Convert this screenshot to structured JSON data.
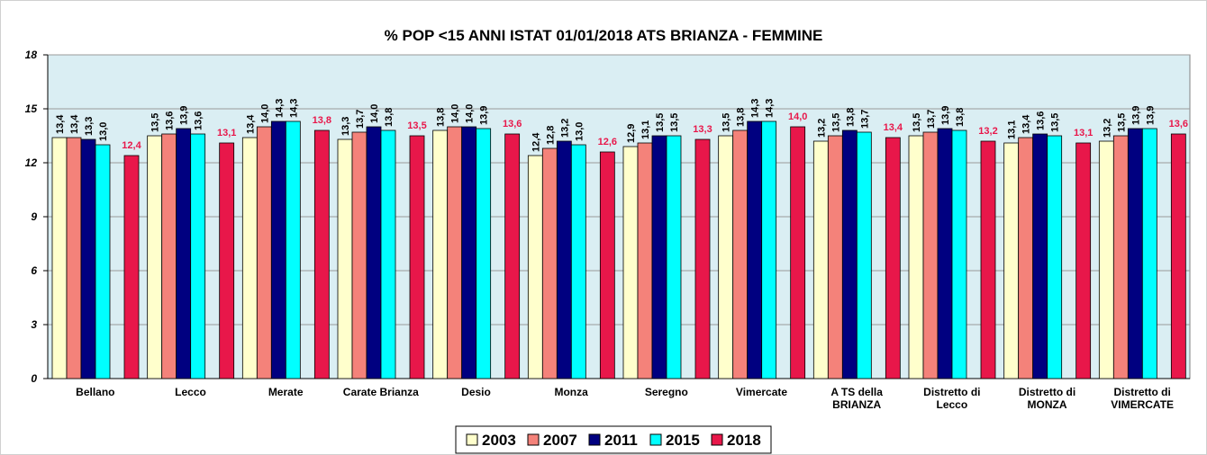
{
  "chart_data": {
    "type": "bar",
    "title": "% POP <15 ANNI ISTAT 01/01/2018  ATS BRIANZA - FEMMINE",
    "categories": [
      "Bellano",
      "Lecco",
      "Merate",
      "Carate Brianza",
      "Desio",
      "Monza",
      "Seregno",
      "Vimercate",
      "A TS della\nBRIANZA",
      "Distretto di\nLecco",
      "Distretto di\nMONZA",
      "Distretto di\nVIMERCATE"
    ],
    "series": [
      {
        "name": "2003",
        "color": "#ffffcc",
        "values": [
          13.4,
          13.5,
          13.4,
          13.3,
          13.8,
          12.4,
          12.9,
          13.5,
          13.2,
          13.5,
          13.1,
          13.2
        ],
        "value_labels": [
          "13,4",
          "13,5",
          "13,4",
          "13,3",
          "13,8",
          "12,4",
          "12,9",
          "13,5",
          "13,2",
          "13,5",
          "13,1",
          "13,2"
        ]
      },
      {
        "name": "2007",
        "color": "#f4827a",
        "values": [
          13.4,
          13.6,
          14.0,
          13.7,
          14.0,
          12.8,
          13.1,
          13.8,
          13.5,
          13.7,
          13.4,
          13.5
        ],
        "value_labels": [
          "13,4",
          "13,6",
          "14,0",
          "13,7",
          "14,0",
          "12,8",
          "13,1",
          "13,8",
          "13,5",
          "13,7",
          "13,4",
          "13,5"
        ]
      },
      {
        "name": "2011",
        "color": "#000080",
        "values": [
          13.3,
          13.9,
          14.3,
          14.0,
          14.0,
          13.2,
          13.5,
          14.3,
          13.8,
          13.9,
          13.6,
          13.9
        ],
        "value_labels": [
          "13,3",
          "13,9",
          "14,3",
          "14,0",
          "14,0",
          "13,2",
          "13,5",
          "14,3",
          "13,8",
          "13,9",
          "13,6",
          "13,9"
        ]
      },
      {
        "name": "2015",
        "color": "#00ffff",
        "values": [
          13.0,
          13.6,
          14.3,
          13.8,
          13.9,
          13.0,
          13.5,
          14.3,
          13.7,
          13.8,
          13.5,
          13.9
        ],
        "value_labels": [
          "13,0",
          "13,6",
          "14,3",
          "13,8",
          "13,9",
          "13,0",
          "13,5",
          "14,3",
          "13,7",
          "13,8",
          "13,5",
          "13,9"
        ]
      },
      {
        "name": "2018",
        "color": "#e8174a",
        "values": [
          12.4,
          13.1,
          13.8,
          13.5,
          13.6,
          12.6,
          13.3,
          14.0,
          13.4,
          13.2,
          13.1,
          13.6
        ],
        "value_labels": [
          "12,4",
          "13,1",
          "13,8",
          "13,5",
          "13,6",
          "12,6",
          "13,3",
          "14,0",
          "13,4",
          "13,2",
          "13,1",
          "13,6"
        ]
      }
    ],
    "ylim": [
      0,
      18
    ],
    "yticks": [
      0,
      3,
      6,
      9,
      12,
      15,
      18
    ],
    "grid": true
  }
}
